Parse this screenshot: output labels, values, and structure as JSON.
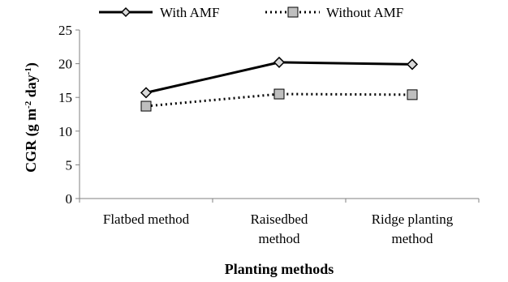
{
  "chart_data": {
    "type": "line",
    "categories": [
      [
        "Flatbed method"
      ],
      [
        "Raisedbed",
        "method"
      ],
      [
        "Ridge planting",
        "method"
      ]
    ],
    "series": [
      {
        "name": "With AMF",
        "values": [
          15.7,
          20.2,
          19.9
        ],
        "color": "#000000",
        "line_style": "solid",
        "marker": "diamond"
      },
      {
        "name": "Without AMF",
        "values": [
          13.7,
          15.5,
          15.4
        ],
        "color": "#000000",
        "line_style": "dotted",
        "marker": "square"
      }
    ],
    "ylim": [
      0,
      25
    ],
    "yticks": [
      0,
      5,
      10,
      15,
      20,
      25
    ],
    "xlabel": "Planting methods",
    "ylabel": "CGR (g m-2 day-1)",
    "ylabel_parts": {
      "main": "CGR (g m",
      "sup1": "-2",
      "mid": " day",
      "sup2": "-1",
      "end": ")"
    },
    "grid": false,
    "legend_position": "top"
  }
}
